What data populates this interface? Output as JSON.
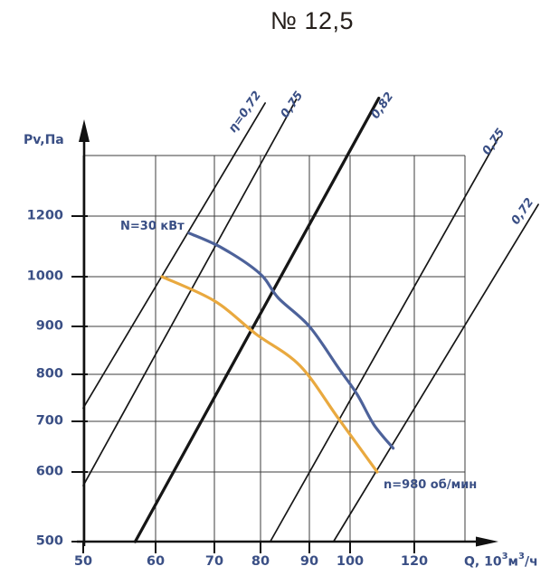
{
  "title": "№ 12,5",
  "chart_data": {
    "type": "line",
    "title": "№ 12,5",
    "x_axis": {
      "label_prefix": "Q, 10",
      "label_sup1": "3",
      "label_mid": "м",
      "label_sup2": "3",
      "label_suffix": "/ч",
      "ticks": [
        50,
        60,
        70,
        80,
        90,
        100,
        120
      ],
      "range": [
        50,
        140
      ],
      "scale": "log"
    },
    "y_axis": {
      "label": "Pv,Па",
      "ticks": [
        1200,
        1000,
        900,
        800,
        700,
        600,
        500
      ],
      "range": [
        500,
        1400
      ],
      "scale": "log"
    },
    "grid": {
      "x_lines": [
        50,
        60,
        70,
        80,
        90,
        100,
        120,
        140
      ],
      "y_lines": [
        600,
        700,
        800,
        900,
        1000,
        1200,
        1400
      ]
    },
    "efficiency_lines": [
      {
        "label": "η=0,72",
        "from": [
          50,
          727
        ],
        "to": [
          80.9,
          1600
        ],
        "thick": false
      },
      {
        "label": "0,75",
        "from": [
          50,
          579
        ],
        "to": [
          87.2,
          1615
        ],
        "thick": false
      },
      {
        "label": "0,82",
        "from": [
          57,
          500
        ],
        "to": [
          108.5,
          1620
        ],
        "thick": true
      },
      {
        "label": "0,75",
        "from": [
          81.9,
          500
        ],
        "to": [
          155,
          1465
        ],
        "thick": false
      },
      {
        "label": "0,72",
        "from": [
          95.8,
          500
        ],
        "to": [
          175,
          1236
        ],
        "thick": false
      }
    ],
    "curves": [
      {
        "name": "power",
        "label": "N=30 кВт",
        "color": "#4d629a",
        "points": [
          [
            65.5,
            1140
          ],
          [
            71.6,
            1090
          ],
          [
            79.8,
            1010
          ],
          [
            83.5,
            956
          ],
          [
            90,
            900
          ],
          [
            97,
            813
          ],
          [
            102,
            756
          ],
          [
            107,
            693
          ],
          [
            113,
            645
          ]
        ]
      },
      {
        "name": "speed",
        "label": "n=980 об/мин",
        "color": "#e9a93f",
        "points": [
          [
            61,
            1000
          ],
          [
            70,
            950
          ],
          [
            79,
            883
          ],
          [
            88,
            817
          ],
          [
            97,
            706
          ],
          [
            108,
            600
          ]
        ]
      }
    ],
    "colors": {
      "label_text": "#3a4f85",
      "axis": "#111111",
      "grid": "#3c3c3c",
      "title_text": "#241e1a"
    }
  }
}
